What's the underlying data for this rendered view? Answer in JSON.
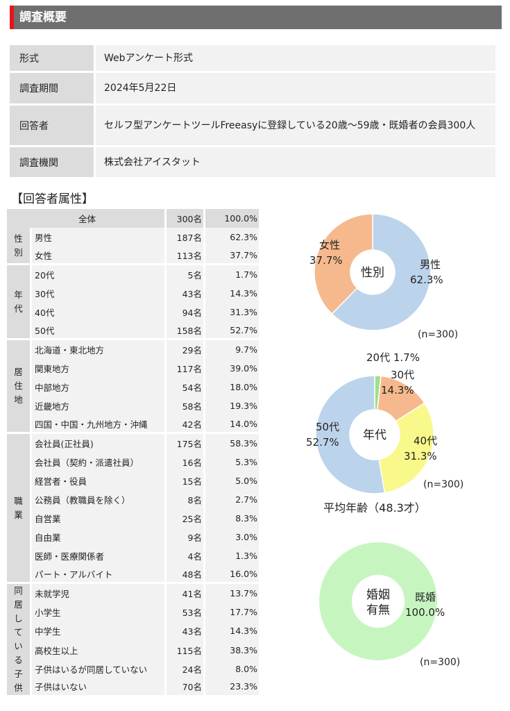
{
  "section_title": "調査概要",
  "overview": [
    {
      "key": "形式",
      "value": "Webアンケート形式"
    },
    {
      "key": "調査期間",
      "value": "2024年5月22日"
    },
    {
      "key": "回答者",
      "value": "セルフ型アンケートツールFreeasyに登録している20歳～59歳・既婚者の会員300人"
    },
    {
      "key": "調査機関",
      "value": "株式会社アイスタット"
    }
  ],
  "attributes_title": "【回答者属性】",
  "attributes": {
    "total": {
      "label": "全体",
      "count": "300名",
      "pct": "100.0%"
    },
    "groups": [
      {
        "name": "性別",
        "rows": [
          {
            "label": "男性",
            "count": "187名",
            "pct": "62.3%"
          },
          {
            "label": "女性",
            "count": "113名",
            "pct": "37.7%"
          }
        ]
      },
      {
        "name": "年代",
        "rows": [
          {
            "label": "20代",
            "count": "5名",
            "pct": "1.7%"
          },
          {
            "label": "30代",
            "count": "43名",
            "pct": "14.3%"
          },
          {
            "label": "40代",
            "count": "94名",
            "pct": "31.3%"
          },
          {
            "label": "50代",
            "count": "158名",
            "pct": "52.7%"
          }
        ]
      },
      {
        "name": "居住地",
        "rows": [
          {
            "label": "北海道・東北地方",
            "count": "29名",
            "pct": "9.7%"
          },
          {
            "label": "関東地方",
            "count": "117名",
            "pct": "39.0%"
          },
          {
            "label": "中部地方",
            "count": "54名",
            "pct": "18.0%"
          },
          {
            "label": "近畿地方",
            "count": "58名",
            "pct": "19.3%"
          },
          {
            "label": "四国・中国・九州地方・沖縄",
            "count": "42名",
            "pct": "14.0%"
          }
        ]
      },
      {
        "name": "職業",
        "rows": [
          {
            "label": "会社員(正社員)",
            "count": "175名",
            "pct": "58.3%"
          },
          {
            "label": "会社員（契約・派遣社員）",
            "count": "16名",
            "pct": "5.3%"
          },
          {
            "label": "経営者・役員",
            "count": "15名",
            "pct": "5.0%"
          },
          {
            "label": "公務員（教職員を除く）",
            "count": "8名",
            "pct": "2.7%"
          },
          {
            "label": "自営業",
            "count": "25名",
            "pct": "8.3%"
          },
          {
            "label": "自由業",
            "count": "9名",
            "pct": "3.0%"
          },
          {
            "label": "医師・医療関係者",
            "count": "4名",
            "pct": "1.3%"
          },
          {
            "label": "パート・アルバイト",
            "count": "48名",
            "pct": "16.0%"
          }
        ]
      },
      {
        "name": "同居している子供",
        "rows": [
          {
            "label": "未就学児",
            "count": "41名",
            "pct": "13.7%"
          },
          {
            "label": "小学生",
            "count": "53名",
            "pct": "17.7%"
          },
          {
            "label": "中学生",
            "count": "43名",
            "pct": "14.3%"
          },
          {
            "label": "高校生以上",
            "count": "115名",
            "pct": "38.3%"
          },
          {
            "label": "子供はいるが同居していない",
            "count": "24名",
            "pct": "8.0%"
          },
          {
            "label": "子供はいない",
            "count": "70名",
            "pct": "23.3%"
          }
        ]
      }
    ]
  },
  "chart_data": [
    {
      "type": "pie",
      "title": "性別",
      "categories": [
        "男性",
        "女性"
      ],
      "values": [
        62.3,
        37.7
      ],
      "labels": [
        "62.3%",
        "37.7%"
      ],
      "colors": [
        "#bcd3ec",
        "#f6b98d"
      ],
      "note": "(n=300)"
    },
    {
      "type": "pie",
      "title": "年代",
      "categories": [
        "20代",
        "30代",
        "40代",
        "50代"
      ],
      "values": [
        1.7,
        14.3,
        31.3,
        52.7
      ],
      "labels": [
        "1.7%",
        "14.3%",
        "31.3%",
        "52.7%"
      ],
      "colors": [
        "#9fe08a",
        "#f6b98d",
        "#f9f88a",
        "#bcd3ec"
      ],
      "note": "(n=300)",
      "caption": "平均年齢（48.3才）"
    },
    {
      "type": "pie",
      "title": "婚姻有無",
      "categories": [
        "既婚"
      ],
      "values": [
        100.0
      ],
      "labels": [
        "100.0%"
      ],
      "colors": [
        "#c7f5c0"
      ],
      "note": "(n=300)"
    }
  ]
}
